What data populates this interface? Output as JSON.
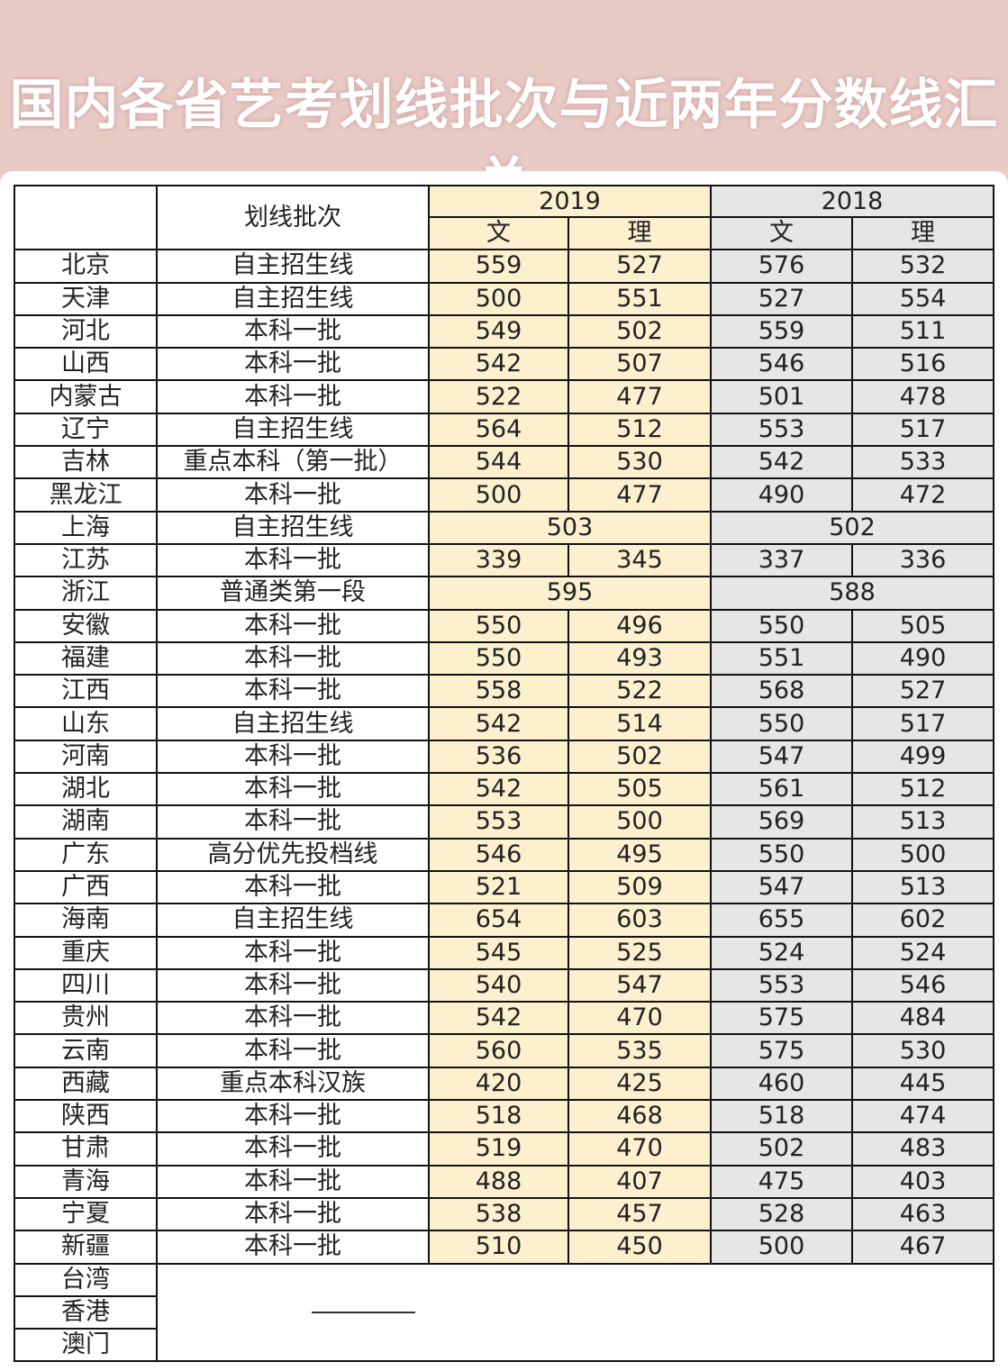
{
  "title": "国内各省艺考划线批次与近两年分数线汇总",
  "table": {
    "header": {
      "batch": "划线批次",
      "year1": "2019",
      "year2": "2018",
      "wen": "文",
      "li": "理"
    },
    "rows": [
      [
        "北京",
        "自主招生线",
        "559",
        "527",
        "576",
        "532"
      ],
      [
        "天津",
        "自主招生线",
        "500",
        "551",
        "527",
        "554"
      ],
      [
        "河北",
        "本科一批",
        "549",
        "502",
        "559",
        "511"
      ],
      [
        "山西",
        "本科一批",
        "542",
        "507",
        "546",
        "516"
      ],
      [
        "内蒙古",
        "本科一批",
        "522",
        "477",
        "501",
        "478"
      ],
      [
        "辽宁",
        "自主招生线",
        "564",
        "512",
        "553",
        "517"
      ],
      [
        "吉林",
        "重点本科（第一批）",
        "544",
        "530",
        "542",
        "533"
      ],
      [
        "黑龙江",
        "本科一批",
        "500",
        "477",
        "490",
        "472"
      ],
      [
        "上海",
        "自主招生线",
        "503",
        "502"
      ],
      [
        "江苏",
        "本科一批",
        "339",
        "345",
        "337",
        "336"
      ],
      [
        "浙江",
        "普通类第一段",
        "595",
        "588"
      ],
      [
        "安徽",
        "本科一批",
        "550",
        "496",
        "550",
        "505"
      ],
      [
        "福建",
        "本科一批",
        "550",
        "493",
        "551",
        "490"
      ],
      [
        "江西",
        "本科一批",
        "558",
        "522",
        "568",
        "527"
      ],
      [
        "山东",
        "自主招生线",
        "542",
        "514",
        "550",
        "517"
      ],
      [
        "河南",
        "本科一批",
        "536",
        "502",
        "547",
        "499"
      ],
      [
        "湖北",
        "本科一批",
        "542",
        "505",
        "561",
        "512"
      ],
      [
        "湖南",
        "本科一批",
        "553",
        "500",
        "569",
        "513"
      ],
      [
        "广东",
        "高分优先投档线",
        "546",
        "495",
        "550",
        "500"
      ],
      [
        "广西",
        "本科一批",
        "521",
        "509",
        "547",
        "513"
      ],
      [
        "海南",
        "自主招生线",
        "654",
        "603",
        "655",
        "602"
      ],
      [
        "重庆",
        "本科一批",
        "545",
        "525",
        "524",
        "524"
      ],
      [
        "四川",
        "本科一批",
        "540",
        "547",
        "553",
        "546"
      ],
      [
        "贵州",
        "本科一批",
        "542",
        "470",
        "575",
        "484"
      ],
      [
        "云南",
        "本科一批",
        "560",
        "535",
        "575",
        "530"
      ],
      [
        "西藏",
        "重点本科汉族",
        "420",
        "425",
        "460",
        "445"
      ],
      [
        "陕西",
        "本科一批",
        "518",
        "468",
        "518",
        "474"
      ],
      [
        "甘肃",
        "本科一批",
        "519",
        "470",
        "502",
        "483"
      ],
      [
        "青海",
        "本科一批",
        "488",
        "407",
        "475",
        "403"
      ],
      [
        "宁夏",
        "本科一批",
        "538",
        "457",
        "528",
        "463"
      ],
      [
        "新疆",
        "本科一批",
        "510",
        "450",
        "500",
        "467"
      ]
    ],
    "no_data_regions": [
      "台湾",
      "香港",
      "澳门"
    ]
  },
  "colors": {
    "background": "#e9cbc6",
    "col_2019": "#fdf0cf",
    "col_2018": "#e6e6e9"
  }
}
